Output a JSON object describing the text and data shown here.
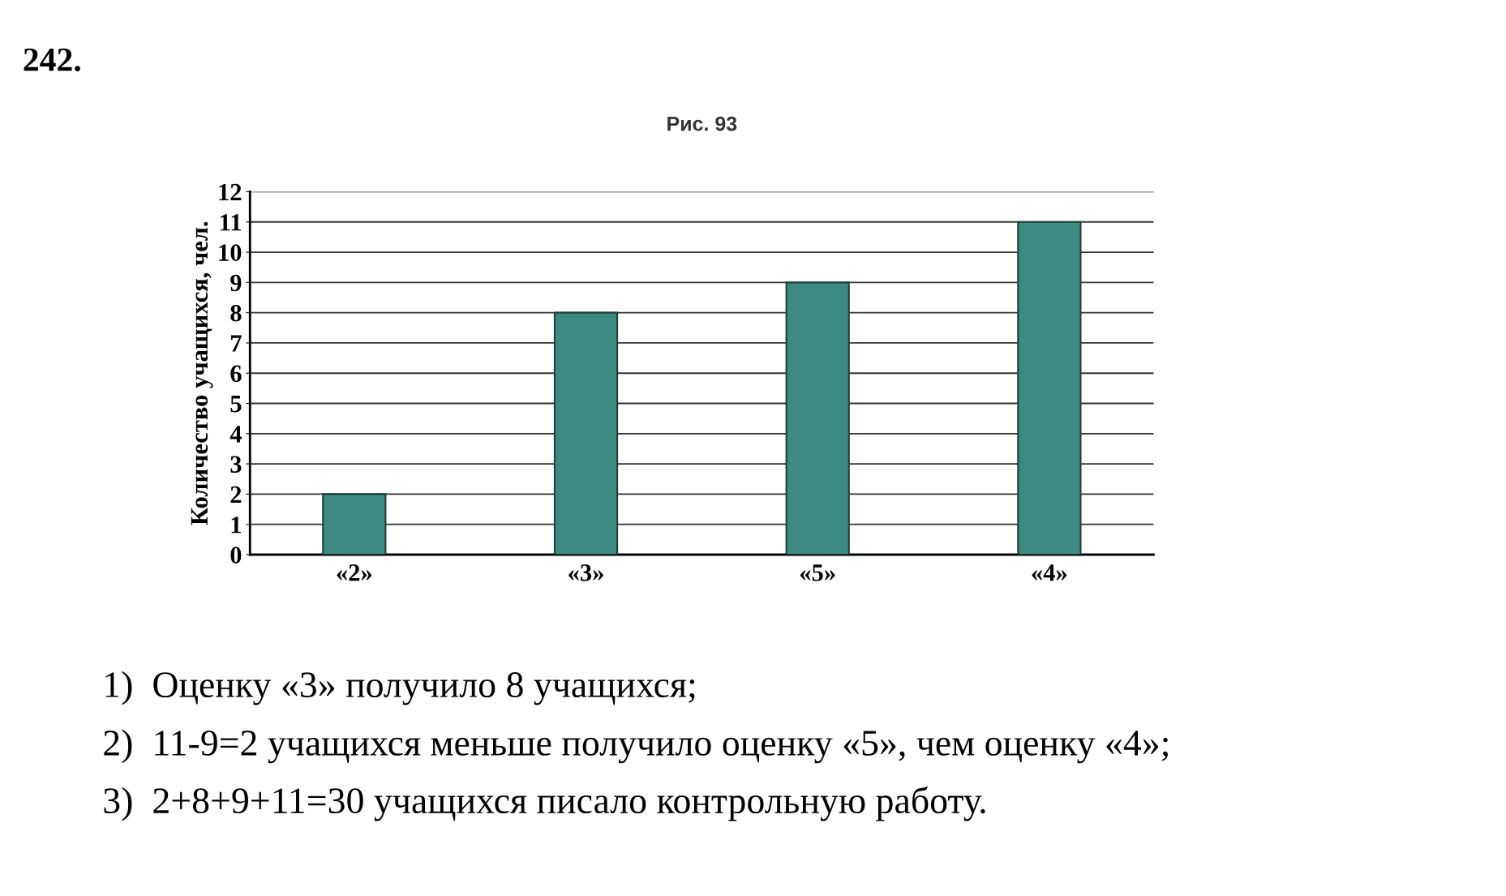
{
  "chart_data": {
    "type": "bar",
    "title": "242.",
    "subtitle": "Рис. 93",
    "ylabel": "Количество учащихся, чел.",
    "categories": [
      "«2»",
      "«3»",
      "«5»",
      "«4»"
    ],
    "values": [
      2,
      8,
      9,
      11
    ],
    "color": "#3d8a80",
    "ylim": [
      0,
      12
    ],
    "yticks": [
      0,
      1,
      2,
      3,
      4,
      5,
      6,
      7,
      8,
      9,
      10,
      11,
      12
    ],
    "grid": "y",
    "annotations": [
      "1)  Оценку «3» получило 8 учащихся;",
      "2)  11-9=2 учащихся меньше получило оценку «5», чем оценку «4»;",
      "3)  2+8+9+11=30 учащихся писало контрольную работу."
    ]
  }
}
